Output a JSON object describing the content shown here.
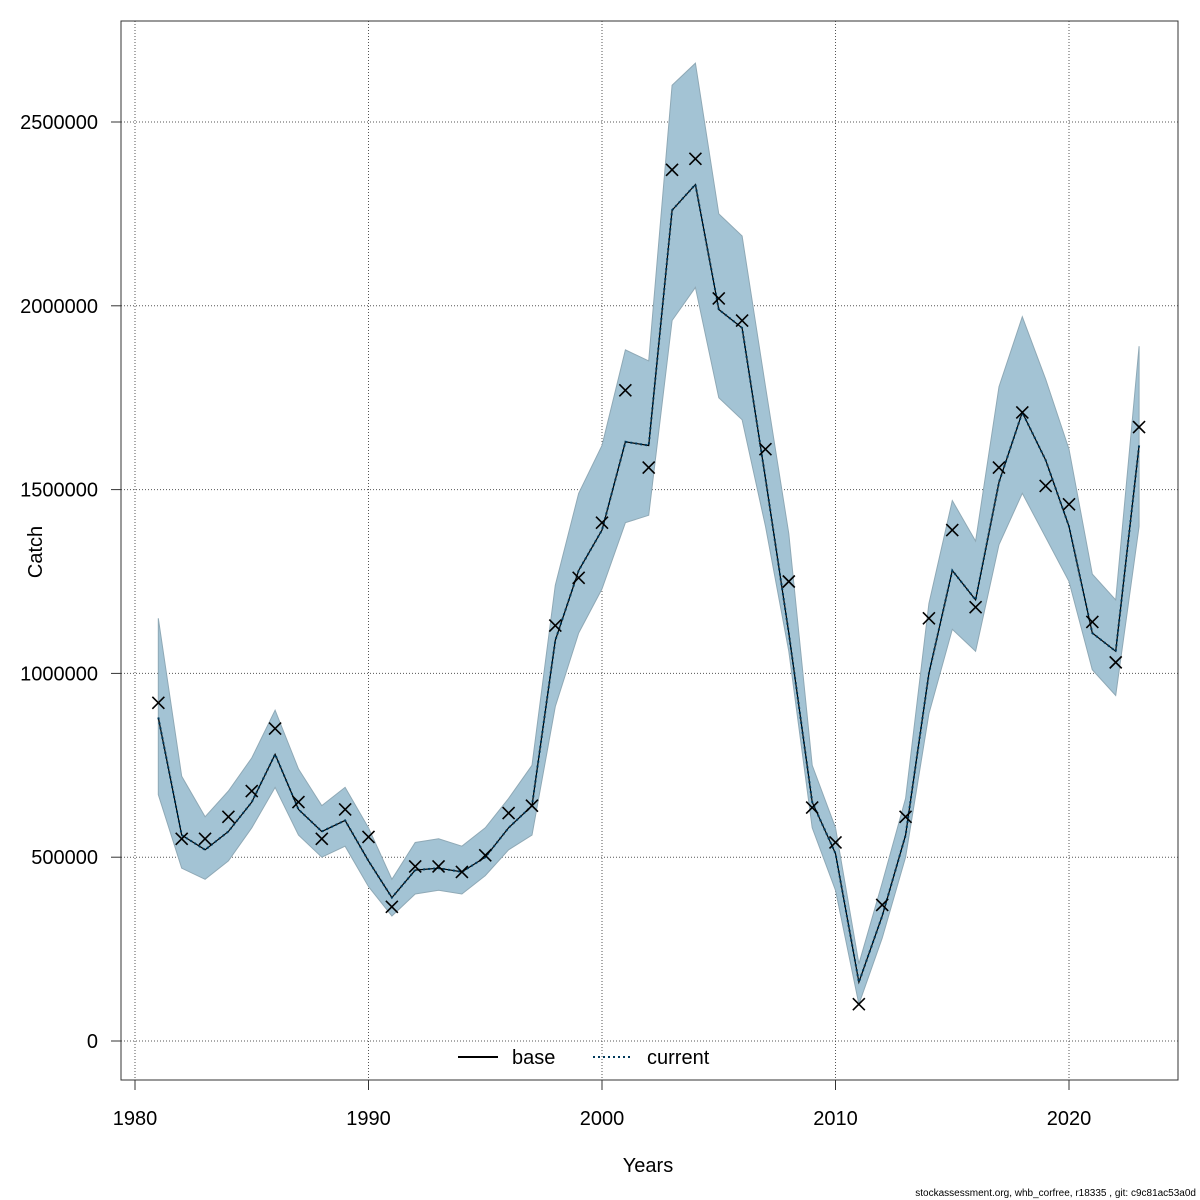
{
  "chart_data": {
    "type": "line",
    "title": "",
    "xlabel": "Years",
    "ylabel": "Catch",
    "xlim": [
      1980,
      2024
    ],
    "ylim": [
      0,
      2700000
    ],
    "grid": true,
    "legend": {
      "placement": "bottom-center",
      "entries": [
        "base",
        "current"
      ]
    },
    "x_ticks": [
      1980,
      1990,
      2000,
      2010,
      2020
    ],
    "y_ticks": [
      0,
      500000,
      1000000,
      1500000,
      2000000,
      2500000
    ],
    "x_tick_labels": [
      "1980",
      "1990",
      "2000",
      "2010",
      "2020"
    ],
    "y_tick_labels": [
      "0",
      "500000",
      "1000000",
      "1500000",
      "2000000",
      "2500000"
    ],
    "years": [
      1981,
      1982,
      1983,
      1984,
      1985,
      1986,
      1987,
      1988,
      1989,
      1990,
      1991,
      1992,
      1993,
      1994,
      1995,
      1996,
      1997,
      1998,
      1999,
      2000,
      2001,
      2002,
      2003,
      2004,
      2005,
      2006,
      2007,
      2008,
      2009,
      2010,
      2011,
      2012,
      2013,
      2014,
      2015,
      2016,
      2017,
      2018,
      2019,
      2020,
      2021,
      2022,
      2023
    ],
    "series": [
      {
        "name": "current",
        "style": "dotted",
        "color": "#003a5c",
        "values": [
          880000,
          560000,
          520000,
          570000,
          650000,
          780000,
          630000,
          570000,
          600000,
          490000,
          390000,
          465000,
          470000,
          460000,
          500000,
          580000,
          640000,
          1090000,
          1280000,
          1390000,
          1630000,
          1620000,
          2260000,
          2330000,
          1990000,
          1940000,
          1530000,
          1110000,
          650000,
          510000,
          160000,
          340000,
          560000,
          1000000,
          1280000,
          1200000,
          1520000,
          1710000,
          1580000,
          1400000,
          1110000,
          1060000,
          1620000
        ]
      },
      {
        "name": "base",
        "style": "solid",
        "color": "#000000",
        "values": [
          880000,
          560000,
          520000,
          570000,
          650000,
          780000,
          630000,
          570000,
          600000,
          490000,
          390000,
          465000,
          470000,
          460000,
          500000,
          580000,
          640000,
          1090000,
          1280000,
          1390000,
          1630000,
          1620000,
          2260000,
          2330000,
          1990000,
          1940000,
          1530000,
          1110000,
          650000,
          510000,
          160000,
          340000,
          560000,
          1000000,
          1280000,
          1200000,
          1520000,
          1710000,
          1580000,
          1400000,
          1110000,
          1060000,
          1620000
        ]
      }
    ],
    "confidence_band": {
      "lower": [
        670000,
        470000,
        440000,
        490000,
        580000,
        690000,
        560000,
        500000,
        530000,
        420000,
        340000,
        400000,
        410000,
        400000,
        450000,
        520000,
        560000,
        910000,
        1110000,
        1230000,
        1410000,
        1430000,
        1960000,
        2050000,
        1750000,
        1690000,
        1400000,
        1060000,
        580000,
        410000,
        100000,
        280000,
        500000,
        890000,
        1120000,
        1060000,
        1350000,
        1490000,
        1370000,
        1250000,
        1010000,
        940000,
        1400000
      ],
      "upper": [
        1150000,
        720000,
        610000,
        680000,
        770000,
        900000,
        740000,
        640000,
        690000,
        580000,
        440000,
        540000,
        550000,
        530000,
        580000,
        660000,
        750000,
        1240000,
        1490000,
        1620000,
        1880000,
        1850000,
        2600000,
        2660000,
        2250000,
        2190000,
        1780000,
        1380000,
        750000,
        580000,
        210000,
        430000,
        660000,
        1190000,
        1470000,
        1360000,
        1780000,
        1970000,
        1800000,
        1610000,
        1270000,
        1200000,
        1890000
      ],
      "color": "#a3c3d4"
    },
    "observed": {
      "marker": "x",
      "values": [
        920000,
        550000,
        550000,
        610000,
        680000,
        850000,
        650000,
        550000,
        630000,
        555000,
        365000,
        475000,
        475000,
        460000,
        505000,
        620000,
        640000,
        1130000,
        1260000,
        1410000,
        1770000,
        1560000,
        2370000,
        2400000,
        2020000,
        1960000,
        1610000,
        1250000,
        635000,
        540000,
        100000,
        370000,
        610000,
        1150000,
        1390000,
        1180000,
        1560000,
        1710000,
        1510000,
        1460000,
        1140000,
        1030000,
        1670000
      ]
    },
    "footnote": "stockassessment.org, whb_corfree, r18335 , git: c9c81ac53a0d"
  }
}
